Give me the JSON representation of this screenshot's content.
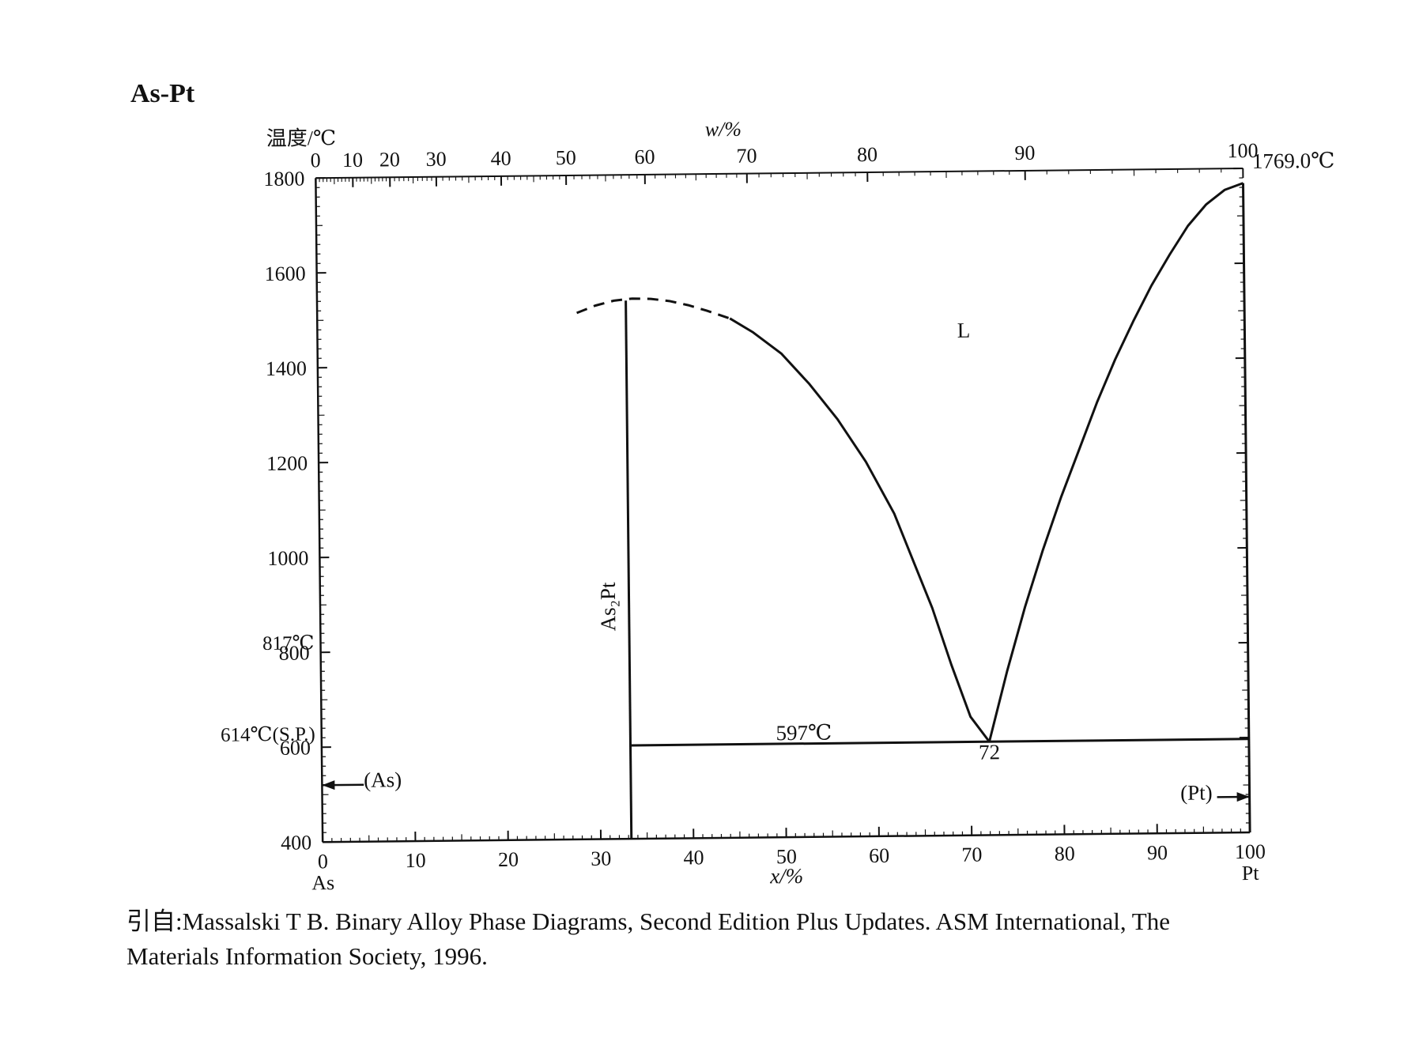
{
  "title": "As-Pt",
  "citation": {
    "line1": "引自:Massalski T B. Binary Alloy Phase Diagrams, Second Edition Plus Updates. ASM International, The",
    "line2": "Materials Information Society, 1996."
  },
  "chart_data": {
    "type": "line",
    "title": "As-Pt",
    "ylabel": "温度/℃",
    "xlabel": "x/%",
    "top_axis_label": "w/%",
    "ylim": [
      400,
      1800
    ],
    "xlim": [
      0,
      100
    ],
    "grid": false,
    "y_ticks": [
      400,
      600,
      800,
      1000,
      1200,
      1400,
      1600,
      1800
    ],
    "x_ticks": [
      0,
      10,
      20,
      30,
      40,
      50,
      60,
      70,
      80,
      90,
      100
    ],
    "top_ticks": [
      0,
      10,
      20,
      30,
      40,
      50,
      60,
      70,
      80,
      90,
      100
    ],
    "top_tick_at_percent": [
      0,
      4.0,
      8.0,
      13.0,
      20.0,
      27.0,
      35.5,
      46.5,
      59.5,
      76.5,
      100
    ],
    "x_end_labels": {
      "left": "As",
      "right": "Pt"
    },
    "series": [
      {
        "style": "dashed",
        "x": [
          28,
          30,
          32,
          34,
          36,
          38,
          40,
          42,
          44.5
        ],
        "y": [
          1510,
          1525,
          1535,
          1539,
          1538,
          1533,
          1524,
          1512,
          1495
        ]
      },
      {
        "style": "solid",
        "x": [
          44.5,
          47,
          50,
          53,
          56,
          59,
          62,
          64,
          66,
          68,
          70,
          72
        ],
        "y": [
          1495,
          1465,
          1420,
          1355,
          1280,
          1190,
          1080,
          980,
          880,
          760,
          650,
          597
        ]
      },
      {
        "style": "solid",
        "x": [
          72,
          74,
          76,
          78,
          80,
          82,
          84,
          86,
          88,
          90,
          92,
          94,
          96,
          98,
          100
        ],
        "y": [
          597,
          745,
          880,
          1000,
          1110,
          1210,
          1310,
          1400,
          1480,
          1555,
          1620,
          1680,
          1725,
          1755,
          1769
        ]
      },
      {
        "style": "solid",
        "x": [
          33.3,
          33.3
        ],
        "y": [
          400,
          1535
        ]
      },
      {
        "style": "solid",
        "x": [
          33.3,
          100
        ],
        "y": [
          597,
          597
        ]
      },
      {
        "style": "solid",
        "x": [
          100,
          100
        ],
        "y": [
          400,
          1769
        ]
      }
    ],
    "annotations": [
      {
        "text": "L",
        "x": 69,
        "y": 1450,
        "anchor": "start"
      },
      {
        "text": "597℃",
        "x": 49,
        "y": 605,
        "anchor": "start"
      },
      {
        "text": "72",
        "x": 72,
        "y": 560,
        "anchor": "middle"
      },
      {
        "text": "1769.0℃",
        "x": 101,
        "y": 1800,
        "anchor": "start"
      },
      {
        "text": "(Pt)",
        "x": 96,
        "y": 470,
        "anchor": "end"
      },
      {
        "text": "(As)",
        "x": 4.5,
        "y": 515,
        "anchor": "start"
      },
      {
        "text": "As₂Pt",
        "x": 31.8,
        "y": 890,
        "anchor": "middle",
        "rotate": -90
      }
    ],
    "left_axis_labels": [
      {
        "text": "817℃",
        "y": 820
      },
      {
        "text": "614℃(S.P.)",
        "y": 628
      }
    ],
    "arrows": [
      {
        "from_x": 4.5,
        "to_x": 0,
        "y": 520
      },
      {
        "from_x": 96.5,
        "to_x": 100,
        "y": 475
      }
    ]
  }
}
